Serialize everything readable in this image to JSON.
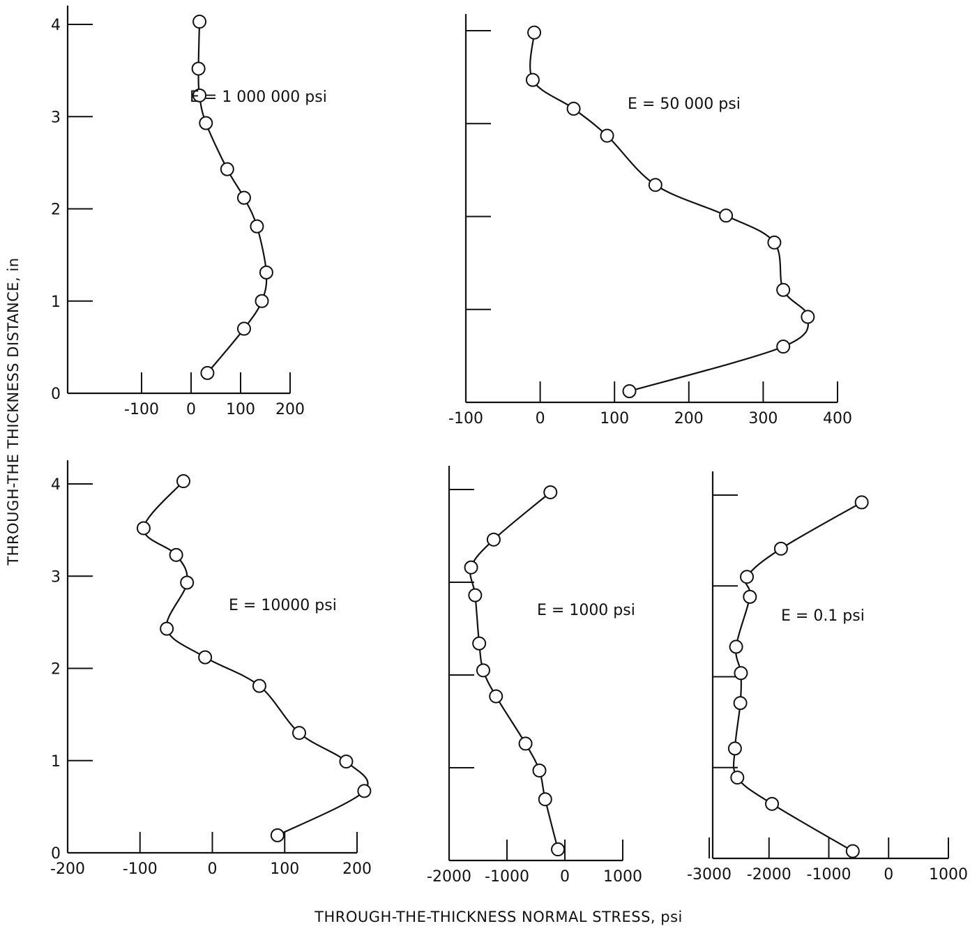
{
  "figure": {
    "ylabel": "THROUGH-THE THICKNESS DISTANCE, in",
    "xlabel": "THROUGH-THE-THICKNESS NORMAL STRESS, psi"
  },
  "chart_data": [
    {
      "type": "line",
      "annotation": "E = 1 000 000 psi",
      "xlim": [
        -100,
        200
      ],
      "ylim": [
        0,
        4
      ],
      "xticks": [
        -100,
        0,
        100,
        200
      ],
      "xtick_labels": [
        "-100",
        "0",
        "100",
        "200"
      ],
      "yticks": [
        0,
        1,
        2,
        3,
        4
      ],
      "ytick_labels": [
        "0",
        "1",
        "2",
        "3",
        "4"
      ],
      "x": [
        17,
        15,
        17,
        30,
        73,
        107,
        133,
        152,
        143,
        107,
        33
      ],
      "y": [
        4.03,
        3.52,
        3.23,
        2.93,
        2.43,
        2.12,
        1.81,
        1.31,
        1.0,
        0.7,
        0.22
      ]
    },
    {
      "type": "line",
      "annotation": "E = 50 000 psi",
      "xlim": [
        -100,
        400
      ],
      "ylim": [
        0,
        4
      ],
      "xticks": [
        -100,
        0,
        100,
        200,
        300,
        400
      ],
      "xtick_labels": [
        "-100",
        "0",
        "100",
        "200",
        "300",
        "400"
      ],
      "yticks": [
        0,
        1,
        2,
        3,
        4
      ],
      "ytick_labels": [],
      "x": [
        -8,
        -10,
        45,
        90,
        155,
        250,
        315,
        327,
        360,
        327,
        120
      ],
      "y": [
        3.98,
        3.47,
        3.16,
        2.87,
        2.34,
        2.01,
        1.72,
        1.21,
        0.92,
        0.6,
        0.12
      ]
    },
    {
      "type": "line",
      "annotation": "E = 10000 psi",
      "xlim": [
        -200,
        200
      ],
      "ylim": [
        0,
        4
      ],
      "xticks": [
        -200,
        -100,
        0,
        100,
        200
      ],
      "xtick_labels": [
        "-200",
        "-100",
        "0",
        "100",
        "200"
      ],
      "yticks": [
        0,
        1,
        2,
        3,
        4
      ],
      "ytick_labels": [
        "0",
        "1",
        "2",
        "3",
        "4"
      ],
      "x": [
        -40,
        -95,
        -50,
        -35,
        -63,
        -10,
        65,
        120,
        185,
        210,
        90
      ],
      "y": [
        4.03,
        3.52,
        3.23,
        2.93,
        2.43,
        2.12,
        1.81,
        1.3,
        0.99,
        0.67,
        0.19
      ]
    },
    {
      "type": "line",
      "annotation": "E = 1000 psi",
      "xlim": [
        -2000,
        1000
      ],
      "ylim": [
        0,
        4
      ],
      "xticks": [
        -2000,
        -1000,
        0,
        1000
      ],
      "xtick_labels": [
        "-2000",
        "-1000",
        "0",
        "1000"
      ],
      "yticks": [
        0,
        1,
        2,
        3,
        4
      ],
      "ytick_labels": [],
      "x": [
        -250,
        -1230,
        -1620,
        -1550,
        -1480,
        -1410,
        -1190,
        -680,
        -440,
        -340,
        -120
      ],
      "y": [
        3.97,
        3.46,
        3.16,
        2.86,
        2.34,
        2.05,
        1.77,
        1.26,
        0.97,
        0.66,
        0.12
      ]
    },
    {
      "type": "line",
      "annotation": "E = 0.1 psi",
      "xlim": [
        -3000,
        1000
      ],
      "ylim": [
        0,
        4
      ],
      "xticks": [
        -3000,
        -2000,
        -1000,
        0,
        1000
      ],
      "xtick_labels": [
        "-3000",
        "-2000",
        "-1000",
        "0",
        "1000"
      ],
      "yticks": [
        0,
        1,
        2,
        3,
        4
      ],
      "ytick_labels": [],
      "x": [
        -450,
        -1800,
        -2370,
        -2320,
        -2550,
        -2470,
        -2480,
        -2570,
        -2530,
        -1950,
        -600
      ],
      "y": [
        3.92,
        3.41,
        3.1,
        2.88,
        2.33,
        2.04,
        1.71,
        1.21,
        0.89,
        0.6,
        0.08
      ]
    }
  ]
}
